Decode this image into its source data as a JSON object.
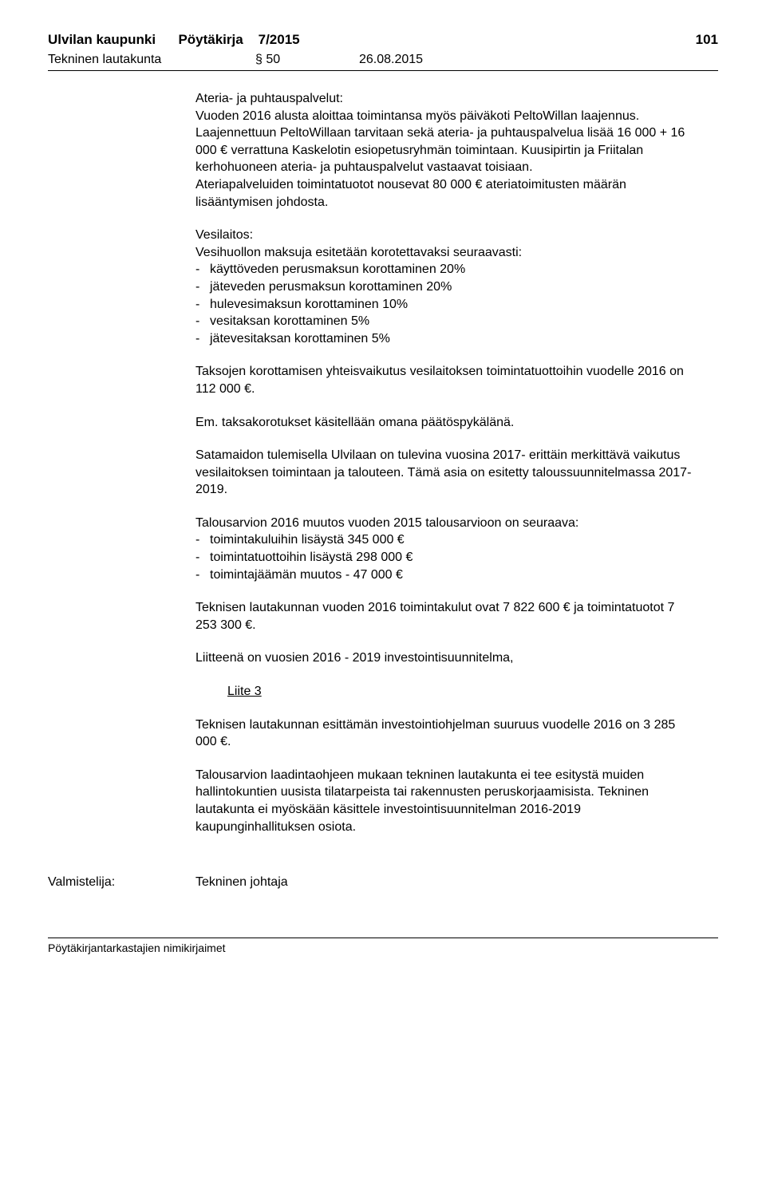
{
  "header": {
    "org": "Ulvilan kaupunki",
    "doc_type": "Pöytäkirja",
    "doc_no": "7/2015",
    "page_no": "101"
  },
  "subheader": {
    "committee": "Tekninen lautakunta",
    "section": "§ 50",
    "date": "26.08.2015"
  },
  "sections": {
    "ateria_title": "Ateria- ja puhtauspalvelut:",
    "ateria_p1": "Vuoden 2016 alusta aloittaa toimintansa myös päiväkoti PeltoWillan laajennus.",
    "ateria_p2": "Laajennettuun PeltoWillaan tarvitaan sekä ateria- ja puh­taus­pal­ve­lua lisää 16 000 + 16 000 € verrattuna Kaskelotin esi­ope­tus­ryh­män toimintaan. Kuusipirtin ja Friitalan kerhohuoneen ateria- ja puhtauspalvelut vastaavat toisiaan.",
    "ateria_p3": "Ateriapalveluiden toimintatuotot nousevat 80 000 € ateriatoimitusten mää­rän lisääntymisen johdosta.",
    "vesi_title": "Vesilaitos:",
    "vesi_intro": "Vesihuollon maksuja esitetään korotettavaksi seuraavasti:",
    "vesi_items": [
      "käyttöveden perusmaksun korottaminen 20%",
      "jäteveden perusmaksun korottaminen 20%",
      "hulevesimaksun korottaminen 10%",
      "vesitaksan korottaminen 5%",
      "jätevesitaksan korottaminen 5%"
    ],
    "taksojen": "Taksojen korottamisen yhteisvaikutus vesilaitoksen toimintatuottoihin vuodelle 2016 on 112 000 €.",
    "em": "Em. taksakorotukset käsitellään omana päätöspykälänä.",
    "satamaidon": "Satamaidon tulemisella Ulvilaan on tulevina vuosina 2017- erittäin merkittävä vaikutus vesilaitoksen toimintaan ja talouteen. Tämä asia on esitetty taloussuunnitelmassa 2017-2019.",
    "talousarvio_intro": "Talousarvion 2016 muutos vuoden 2015 talousarvioon on seuraava:",
    "talousarvio_items": [
      "toimintakuluihin lisäystä 345 000 €",
      "toimintatuottoihin lisäystä 298 000 €",
      "toimintajäämän muutos - 47 000 €"
    ],
    "teknisen": "Teknisen lautakunnan vuoden 2016 toimintakulut  ovat  7 822 600 € ja toimintatuotot 7 253 300 €.",
    "liitteena": "Liitteenä on vuosien 2016 - 2019 investointisuunnitelma,",
    "liite3": "Liite 3",
    "invest": "Teknisen lautakunnan esittämän investointiohjelman suuruus vuodelle 2016 on 3 285 000 €.",
    "laadinta": "Talousarvion laadintaohjeen mukaan tekninen lautakunta ei tee esi­tys­tä muiden hallintokuntien uusista tilatarpeista tai rakennusten pe­rus­kor­jaa­mi­sis­ta. Tekninen lautakunta ei myöskään käsittele in­ves­toin­ti­suun­ni­tel­man 2016-2019 kaupunginhallituksen osiota."
  },
  "prepared": {
    "label": "Valmistelija:",
    "value": "Tekninen johtaja"
  },
  "footer": {
    "text": "Pöytäkirjantarkastajien nimikirjaimet"
  }
}
